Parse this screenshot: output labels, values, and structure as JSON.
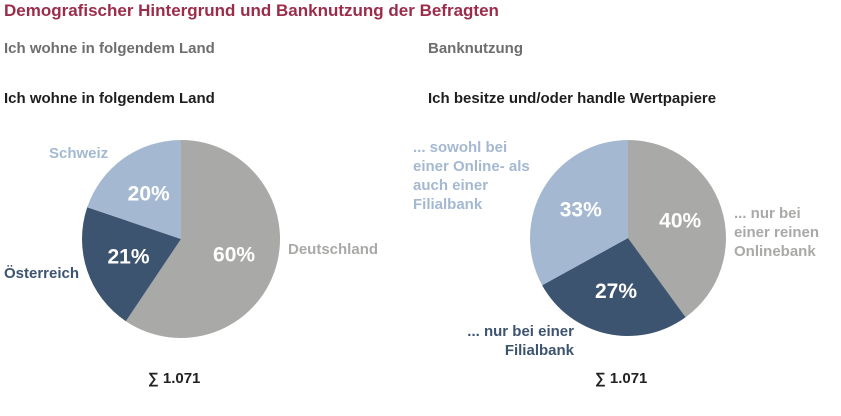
{
  "page": {
    "title": "Demografischer Hintergrund und Banknutzung der Befragten",
    "left_section_title": "Ich wohne in folgendem Land",
    "right_section_title": "Banknutzung"
  },
  "colors": {
    "title": "#9b2d4b",
    "grey": "#a9a9a7",
    "dark_blue": "#3d5470",
    "light_blue": "#a4b9d1"
  },
  "chart_data": [
    {
      "type": "pie",
      "title": "Ich wohne in folgendem Land",
      "slices": [
        {
          "label": "Deutschland",
          "value": 60,
          "value_label": "60%",
          "color": "#a9a9a7"
        },
        {
          "label": "Österreich",
          "value": 21,
          "value_label": "21%",
          "color": "#3d5470"
        },
        {
          "label": "Schweiz",
          "value": 20,
          "value_label": "20%",
          "color": "#a4b9d1"
        }
      ],
      "total": "∑ 1.071"
    },
    {
      "type": "pie",
      "title": "Ich besitze und/oder handle Wertpapiere",
      "slices": [
        {
          "label": "... nur bei einer reinen Onlinebank",
          "value": 40,
          "value_label": "40%",
          "color": "#a9a9a7"
        },
        {
          "label": "... nur bei einer Filialbank",
          "value": 27,
          "value_label": "27%",
          "color": "#3d5470"
        },
        {
          "label": "... sowohl bei einer Online- als auch einer Filialbank",
          "value": 33,
          "value_label": "33%",
          "color": "#a4b9d1"
        }
      ],
      "total": "∑ 1.071"
    }
  ]
}
